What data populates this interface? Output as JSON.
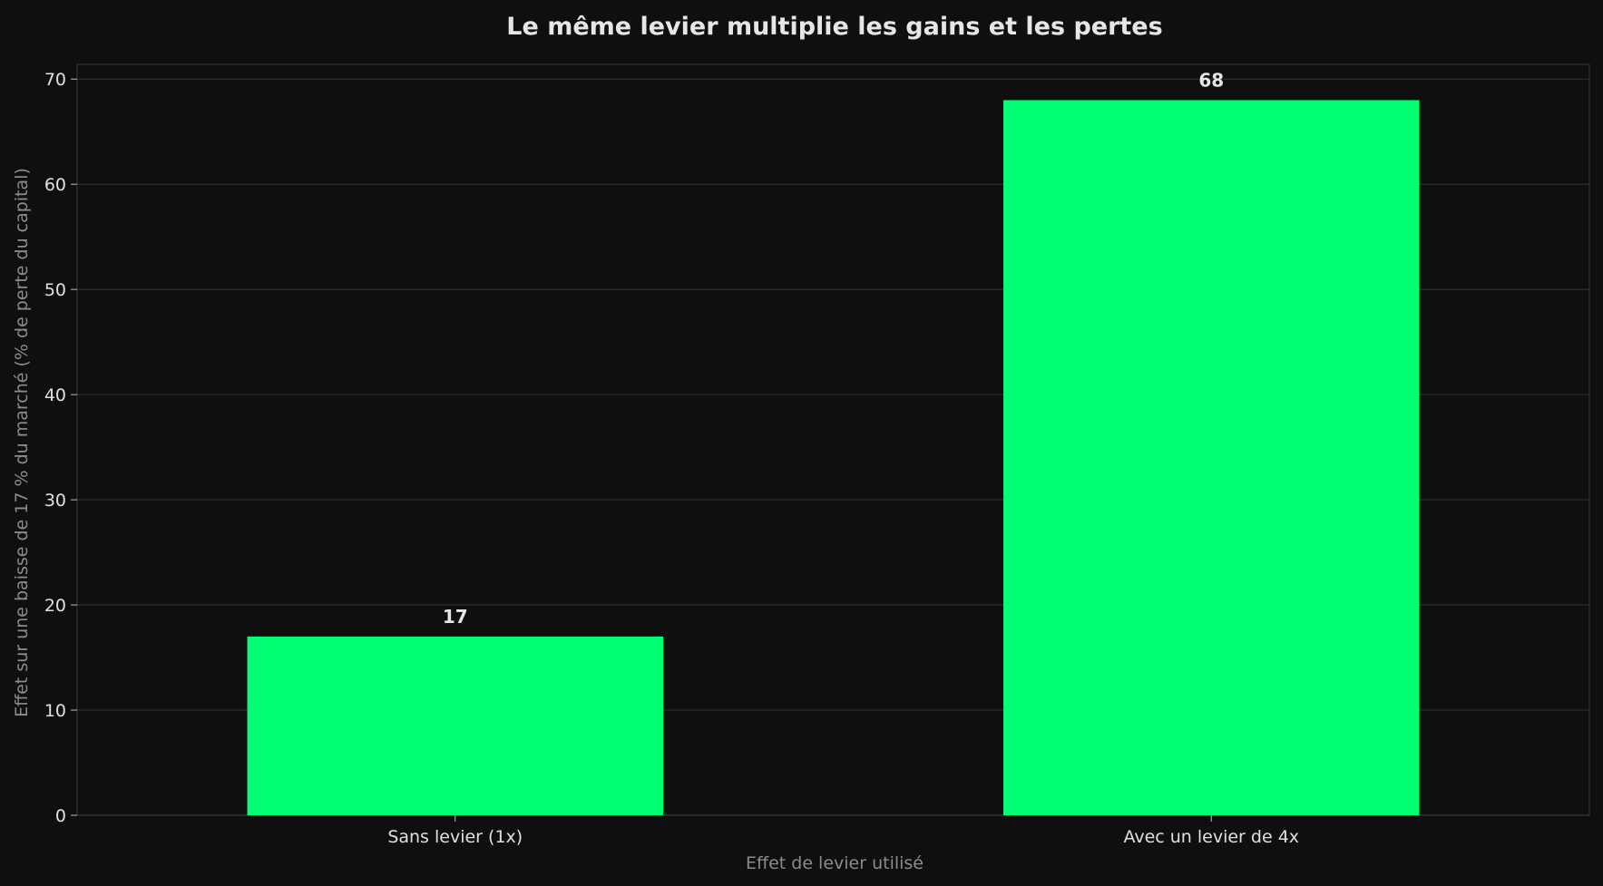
{
  "chart_data": {
    "type": "bar",
    "title": "Le même levier multiplie les gains et les pertes",
    "xlabel": "Effet de levier utilisé",
    "ylabel": "Effet sur une baisse de 17 % du marché (% de perte du capital)",
    "categories": [
      "Sans levier (1x)",
      "Avec un levier de 4x"
    ],
    "values": [
      17,
      68
    ],
    "data_labels": [
      "17",
      "68"
    ],
    "ylim": [
      0,
      71.4
    ],
    "yticks": [
      0,
      10,
      20,
      30,
      40,
      50,
      60,
      70
    ],
    "grid": true,
    "legend": "none"
  },
  "colors": {
    "background": "#0f0f0f",
    "bar": "#00ff73",
    "grid": "#2c2c2c",
    "axes": "#3a3a3a"
  }
}
